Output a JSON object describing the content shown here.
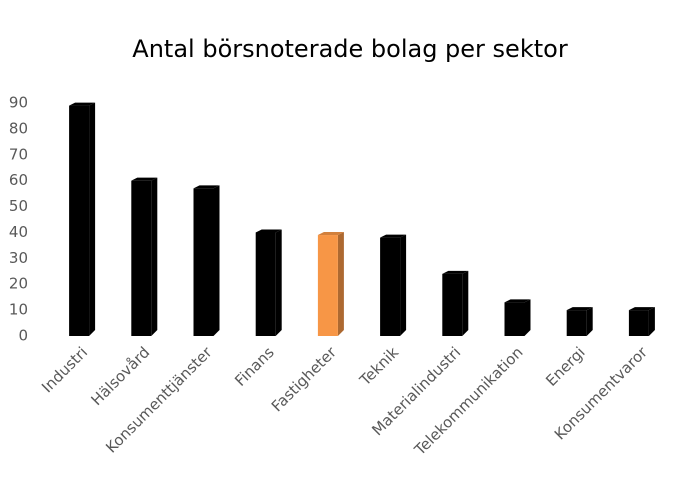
{
  "chart_data": {
    "type": "bar",
    "title": "Antal börsnoterade bolag per sektor",
    "categories": [
      "Industri",
      "Hälsovård",
      "Konsumenttjänster",
      "Finans",
      "Fastigheter",
      "Teknik",
      "Materialindustri",
      "Telekommunikation",
      "Energi",
      "Konsumentvaror"
    ],
    "values": [
      89,
      60,
      57,
      40,
      39,
      38,
      24,
      13,
      10,
      10
    ],
    "colors": [
      "#000000",
      "#000000",
      "#000000",
      "#000000",
      "#f79646",
      "#000000",
      "#000000",
      "#000000",
      "#000000",
      "#000000"
    ],
    "ylim": [
      0,
      90
    ],
    "yticks": [
      0,
      10,
      20,
      30,
      40,
      50,
      60,
      70,
      80,
      90
    ],
    "grid": false
  }
}
